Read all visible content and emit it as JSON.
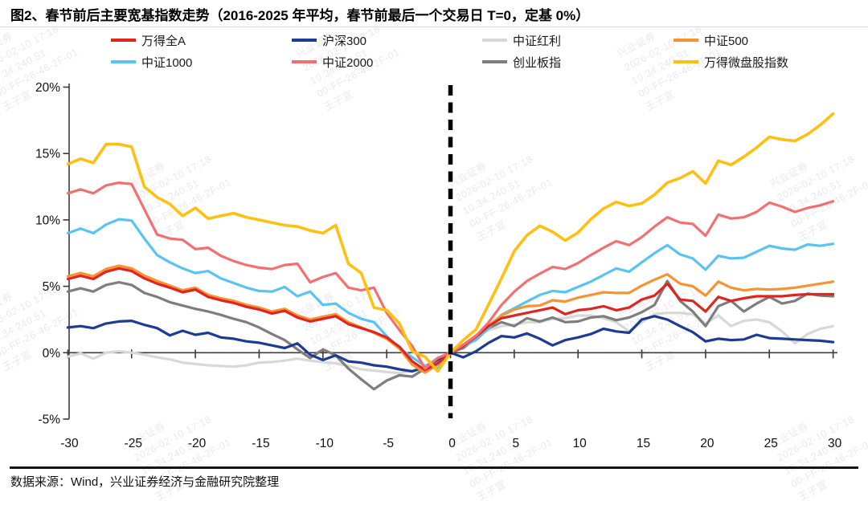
{
  "title": "图2、春节前后主要宽基指数走势（2016-2025 年平均，春节前最后一个交易日 T=0，定基 0%）",
  "source": "数据来源：Wind，兴业证券经济与金融研究院整理",
  "watermark": {
    "lines": [
      "兴业证券",
      "2026-02-10 17:18",
      "10.34.240.51",
      "00-FF-26-46-2F-01",
      "王子宣"
    ]
  },
  "chart_data": {
    "type": "line",
    "title": "春节前后主要宽基指数走势（2016-2025 年平均，春节前最后一个交易日 T=0，定基 0%）",
    "xlabel": "",
    "ylabel": "",
    "x_start": -30,
    "x_end": 30,
    "x_step": 1,
    "x_ticks": [
      -30,
      -25,
      -20,
      -15,
      -10,
      -5,
      0,
      5,
      10,
      15,
      20,
      25,
      30
    ],
    "y_ticks": [
      {
        "value": 20,
        "label": "20%"
      },
      {
        "value": 15,
        "label": "15%"
      },
      {
        "value": 10,
        "label": "10%"
      },
      {
        "value": 5,
        "label": "5%"
      },
      {
        "value": 0,
        "label": "0%"
      },
      {
        "value": -5,
        "label": "-5%"
      }
    ],
    "ylim": [
      -5,
      20
    ],
    "grid": false,
    "legend_position": "top",
    "event_line_x": 0,
    "axis_color": "#3c3c3c",
    "series": [
      {
        "name": "万得全A",
        "key": "wind-all-a",
        "color": "#e02521",
        "values": [
          5.55,
          5.8,
          5.55,
          6.1,
          6.35,
          6.15,
          5.6,
          5.2,
          4.9,
          4.55,
          4.75,
          4.2,
          3.95,
          3.75,
          3.45,
          3.25,
          2.95,
          3.15,
          2.65,
          2.35,
          2.55,
          2.75,
          2.15,
          1.85,
          1.55,
          1.15,
          0.45,
          -0.65,
          -1.3,
          -0.8,
          0,
          0.5,
          1.2,
          2.0,
          2.6,
          2.8,
          3.0,
          3.2,
          3.4,
          2.9,
          3.2,
          3.3,
          3.5,
          3.2,
          3.4,
          4.0,
          4.3,
          5.2,
          4.0,
          3.9,
          3.1,
          4.2,
          3.9,
          4.1,
          4.25,
          4.25,
          4.25,
          4.35,
          4.4,
          4.4,
          4.4
        ]
      },
      {
        "name": "沪深300",
        "key": "csi300",
        "color": "#1c3c94",
        "values": [
          1.9,
          2.0,
          1.85,
          2.2,
          2.35,
          2.4,
          2.1,
          1.85,
          1.3,
          1.65,
          1.35,
          1.5,
          1.15,
          1.05,
          0.85,
          0.75,
          0.55,
          0.35,
          0.7,
          -0.15,
          -0.55,
          -0.2,
          -0.65,
          -0.75,
          -0.95,
          -1.05,
          -1.25,
          -1.4,
          -1.1,
          -0.5,
          0,
          -0.35,
          0.1,
          0.75,
          1.25,
          1.15,
          1.45,
          1.05,
          0.55,
          0.95,
          1.15,
          1.4,
          1.8,
          1.6,
          1.5,
          2.5,
          2.75,
          2.5,
          2.0,
          1.55,
          0.85,
          1.05,
          0.95,
          1.0,
          1.35,
          1.1,
          1.05,
          1.0,
          0.95,
          0.9,
          0.8
        ]
      },
      {
        "name": "中证红利",
        "key": "csi-dividend",
        "color": "#d8d8d8",
        "values": [
          -0.3,
          -0.05,
          -0.45,
          0.0,
          0.1,
          0.0,
          -0.15,
          -0.35,
          -0.5,
          -0.75,
          -0.85,
          -0.95,
          -1.0,
          -1.05,
          -0.95,
          -0.75,
          -0.7,
          -0.6,
          -0.45,
          -0.6,
          -0.7,
          -0.8,
          -1.0,
          -1.25,
          -1.35,
          -1.45,
          -1.55,
          -1.35,
          -0.95,
          -0.4,
          0,
          0.55,
          1.2,
          1.7,
          2.0,
          2.1,
          2.3,
          2.3,
          2.55,
          2.6,
          2.8,
          2.8,
          2.6,
          2.3,
          1.6,
          2.3,
          2.9,
          3.0,
          3.0,
          2.9,
          2.2,
          2.8,
          2.0,
          2.4,
          2.5,
          2.3,
          1.6,
          0.7,
          1.4,
          1.8,
          2.0
        ]
      },
      {
        "name": "中证500",
        "key": "csi500",
        "color": "#f79431",
        "values": [
          5.75,
          6.0,
          5.75,
          6.3,
          6.55,
          6.35,
          5.8,
          5.4,
          5.05,
          4.7,
          4.9,
          4.35,
          4.1,
          3.9,
          3.6,
          3.4,
          3.1,
          3.3,
          2.8,
          2.5,
          2.7,
          2.9,
          2.3,
          1.9,
          1.5,
          1.05,
          0.3,
          -0.9,
          -1.5,
          -0.9,
          0,
          0.6,
          1.3,
          2.05,
          2.8,
          3.25,
          3.5,
          3.55,
          3.95,
          3.85,
          4.15,
          4.35,
          4.55,
          4.5,
          4.5,
          5.05,
          5.5,
          5.9,
          5.2,
          5.0,
          4.3,
          5.35,
          4.9,
          4.7,
          4.8,
          4.75,
          4.8,
          4.9,
          5.05,
          5.2,
          5.35
        ]
      },
      {
        "name": "中证1000",
        "key": "csi1000",
        "color": "#59c3f1",
        "values": [
          9.0,
          9.35,
          9.0,
          9.65,
          10.05,
          9.95,
          8.6,
          7.35,
          6.8,
          6.35,
          6.0,
          6.15,
          5.6,
          5.25,
          4.9,
          4.65,
          4.6,
          4.95,
          4.25,
          4.6,
          3.6,
          3.7,
          3.0,
          2.55,
          2.3,
          1.25,
          0.35,
          -0.35,
          -1.0,
          -1.2,
          0,
          0.5,
          0.95,
          1.85,
          2.85,
          3.35,
          3.85,
          4.35,
          4.65,
          4.55,
          4.95,
          5.35,
          5.85,
          6.35,
          6.1,
          6.8,
          7.5,
          8.1,
          7.4,
          7.1,
          6.25,
          7.3,
          7.1,
          7.15,
          7.6,
          8.05,
          7.85,
          7.75,
          8.15,
          8.05,
          8.2
        ]
      },
      {
        "name": "中证2000",
        "key": "csi2000",
        "color": "#f37072",
        "values": [
          12.0,
          12.3,
          12.0,
          12.6,
          12.8,
          12.7,
          10.8,
          8.9,
          8.6,
          8.5,
          7.8,
          7.9,
          7.3,
          6.9,
          6.6,
          6.4,
          6.3,
          6.6,
          6.7,
          5.3,
          5.7,
          6.0,
          4.9,
          4.7,
          4.9,
          3.0,
          1.7,
          0.5,
          -1.2,
          -0.4,
          0,
          0.6,
          1.25,
          2.3,
          3.6,
          4.6,
          5.4,
          5.95,
          6.45,
          6.3,
          6.75,
          7.35,
          7.9,
          8.4,
          8.1,
          8.7,
          9.5,
          10.2,
          9.8,
          9.7,
          8.8,
          10.4,
          10.1,
          10.2,
          10.6,
          11.3,
          11.0,
          10.6,
          10.9,
          11.1,
          11.4
        ]
      },
      {
        "name": "创业板指",
        "key": "chinext",
        "color": "#7e7e7e",
        "values": [
          4.6,
          4.85,
          4.6,
          5.1,
          5.3,
          5.1,
          4.5,
          4.2,
          3.8,
          3.55,
          3.3,
          3.1,
          2.85,
          2.55,
          2.3,
          1.9,
          1.4,
          0.95,
          0.25,
          -0.4,
          0.25,
          -0.2,
          -1.2,
          -2.0,
          -2.75,
          -2.1,
          -1.7,
          -1.8,
          -1.2,
          -0.55,
          0,
          0.35,
          1.1,
          1.85,
          2.3,
          2.0,
          2.6,
          2.35,
          2.65,
          2.3,
          2.35,
          2.65,
          2.75,
          2.45,
          2.65,
          3.05,
          3.6,
          5.4,
          3.9,
          3.1,
          2.0,
          3.5,
          3.9,
          3.1,
          3.7,
          4.2,
          3.7,
          3.9,
          4.45,
          4.3,
          4.25
        ]
      },
      {
        "name": "万得微盘股指数",
        "key": "wind-microcap",
        "color": "#ffc011",
        "values": [
          14.2,
          14.6,
          14.3,
          15.7,
          15.7,
          15.5,
          12.5,
          11.7,
          11.2,
          10.3,
          10.9,
          10.1,
          10.3,
          10.5,
          10.2,
          10.0,
          9.8,
          9.6,
          9.5,
          9.2,
          9.0,
          9.6,
          6.7,
          6.0,
          3.4,
          3.2,
          2.2,
          0.1,
          -0.3,
          -1.4,
          0,
          0.95,
          1.75,
          3.65,
          5.6,
          7.65,
          8.85,
          9.55,
          9.1,
          8.45,
          9.05,
          10.05,
          10.85,
          11.35,
          11.05,
          11.25,
          11.9,
          12.8,
          13.15,
          13.65,
          12.75,
          14.45,
          14.15,
          14.75,
          15.45,
          16.25,
          16.05,
          15.95,
          16.45,
          17.15,
          18.0
        ]
      }
    ]
  }
}
